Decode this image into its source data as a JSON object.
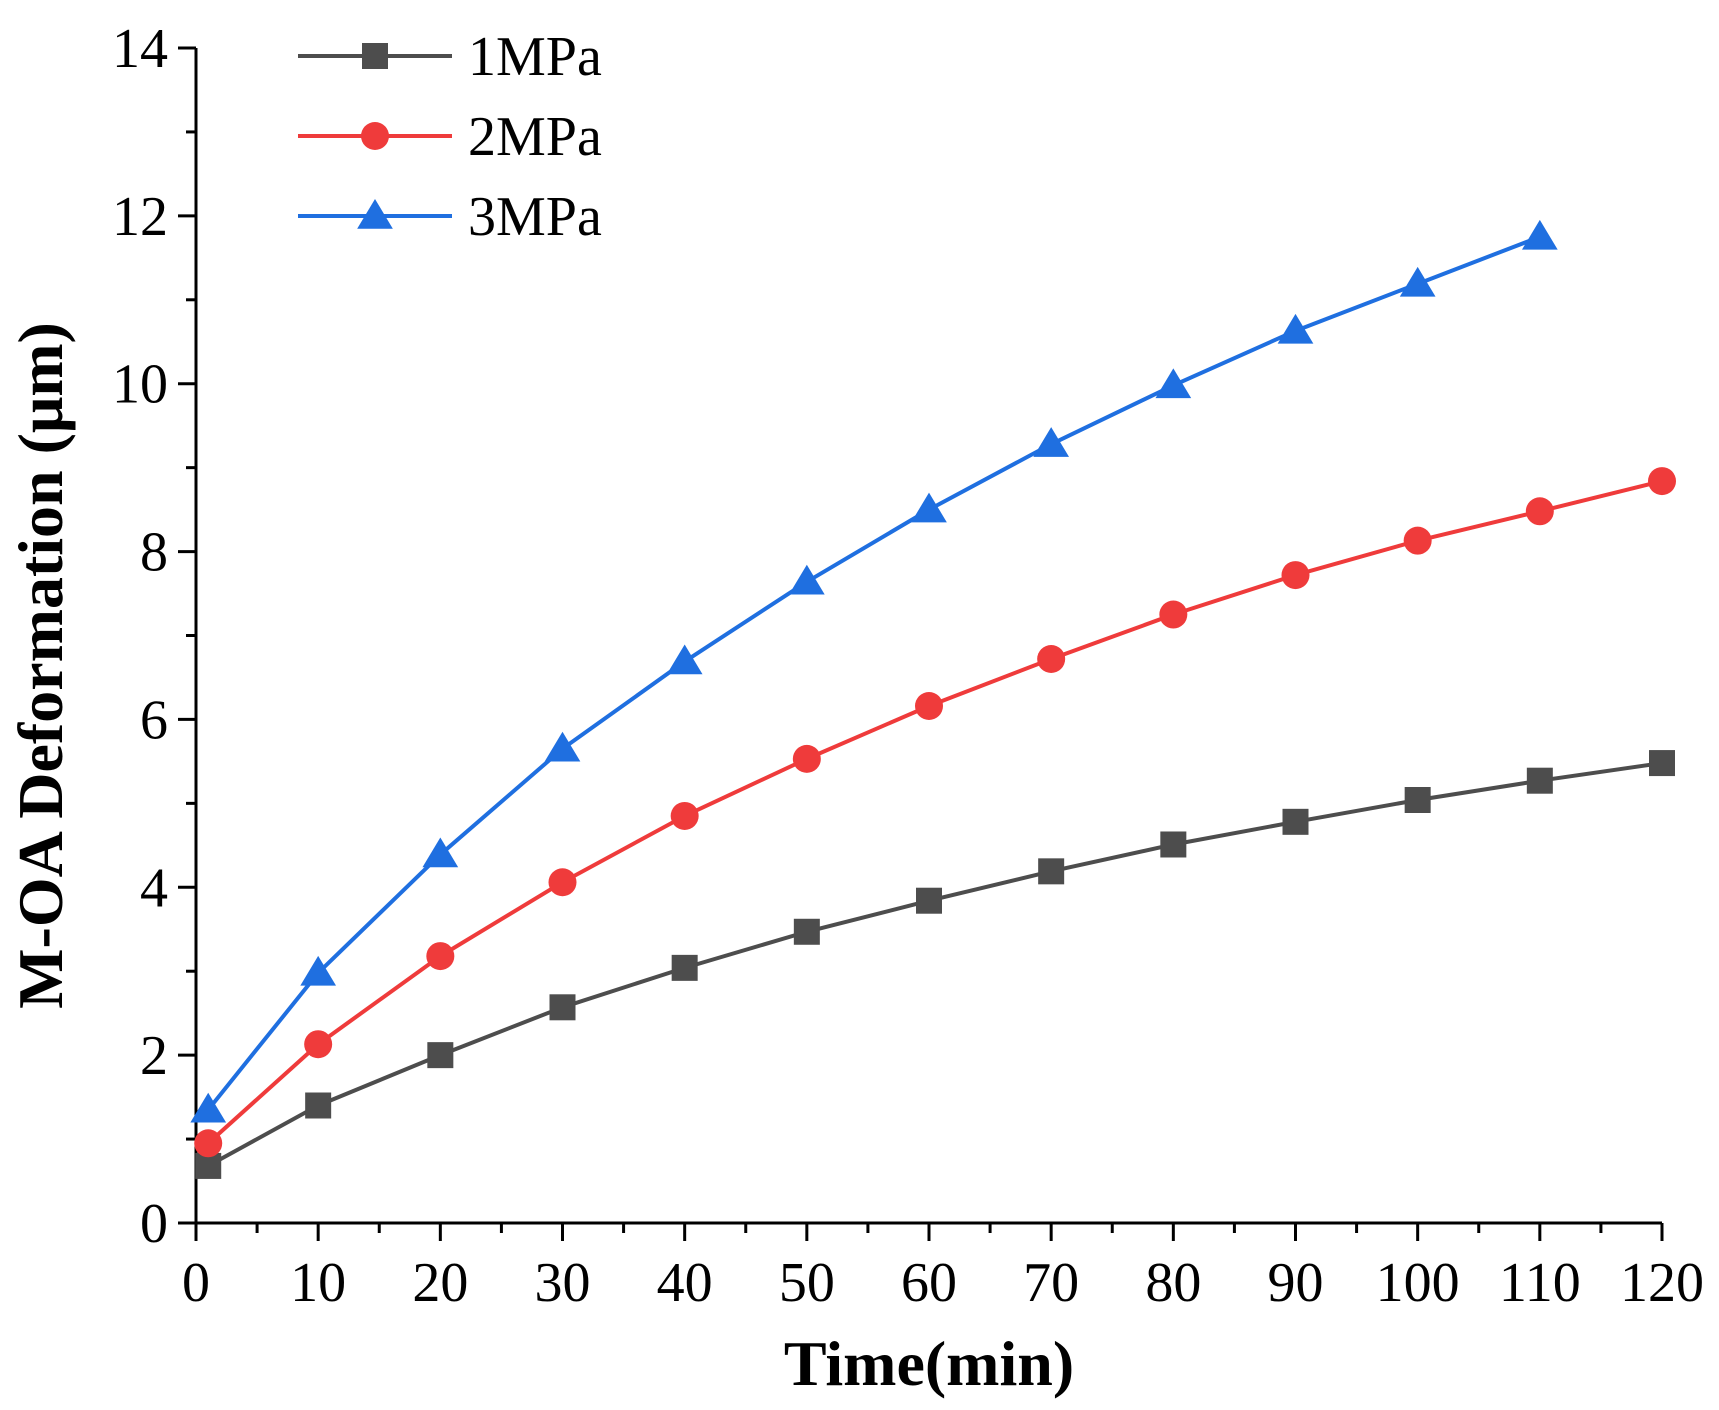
{
  "chart_data": {
    "type": "line",
    "title": "",
    "xlabel": "Time(min)",
    "ylabel": "M-OA Deformation (μm)",
    "xlim": [
      0,
      120
    ],
    "ylim": [
      0,
      14
    ],
    "xticks": [
      0,
      10,
      20,
      30,
      40,
      50,
      60,
      70,
      80,
      90,
      100,
      110,
      120
    ],
    "yticks": [
      0,
      2,
      4,
      6,
      8,
      10,
      12,
      14
    ],
    "grid": false,
    "legend_position": "top-left",
    "series": [
      {
        "name": "1MPa",
        "color": "#4d4d4d",
        "marker": "square",
        "x": [
          1,
          10,
          20,
          30,
          40,
          50,
          60,
          70,
          80,
          90,
          100,
          110,
          120
        ],
        "y": [
          0.68,
          1.4,
          2.0,
          2.57,
          3.04,
          3.47,
          3.84,
          4.19,
          4.51,
          4.78,
          5.04,
          5.27,
          5.48
        ]
      },
      {
        "name": "2MPa",
        "color": "#ef3b3b",
        "marker": "circle",
        "x": [
          1,
          10,
          20,
          30,
          40,
          50,
          60,
          70,
          80,
          90,
          100,
          110,
          120
        ],
        "y": [
          0.95,
          2.13,
          3.18,
          4.06,
          4.85,
          5.53,
          6.16,
          6.72,
          7.25,
          7.72,
          8.13,
          8.48,
          8.84
        ]
      },
      {
        "name": "3MPa",
        "color": "#1f6fe0",
        "marker": "triangle",
        "x": [
          1,
          10,
          20,
          30,
          40,
          50,
          60,
          70,
          80,
          90,
          100,
          110
        ],
        "y": [
          1.35,
          2.98,
          4.39,
          5.65,
          6.69,
          7.64,
          8.5,
          9.28,
          9.98,
          10.63,
          11.19,
          11.75
        ]
      }
    ]
  }
}
